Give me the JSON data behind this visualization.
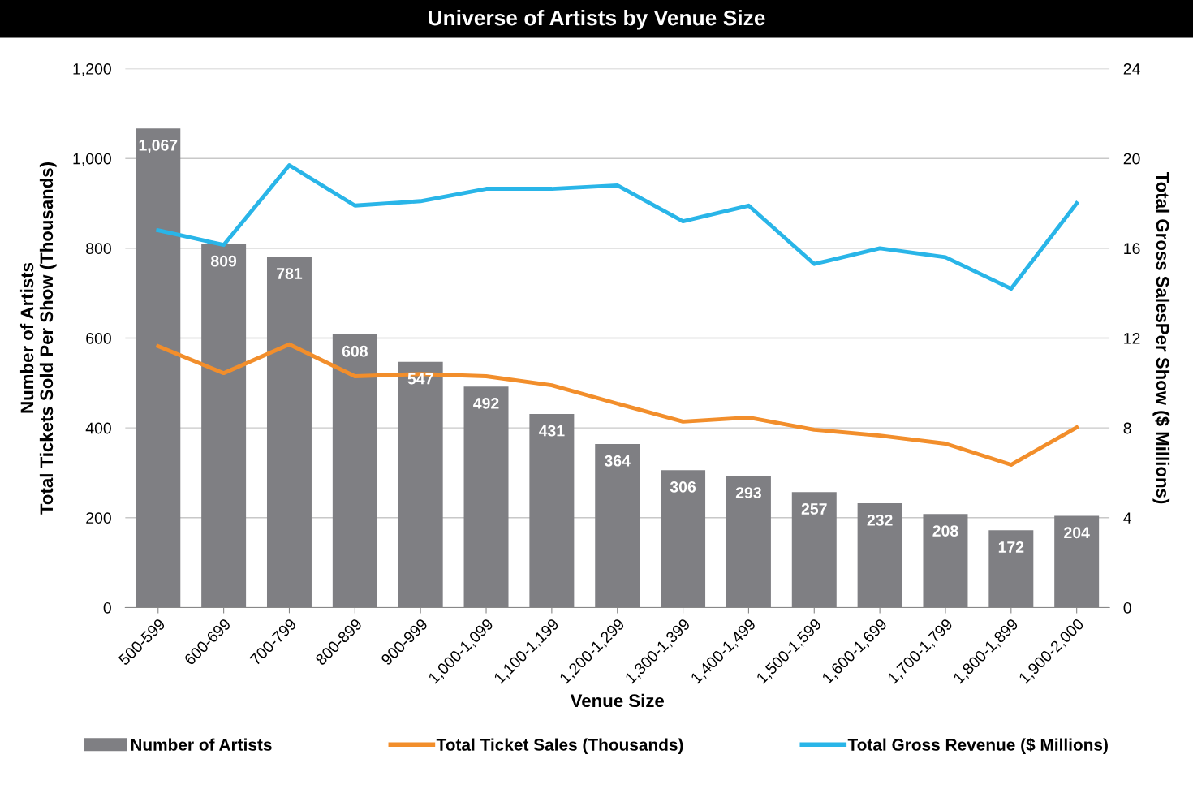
{
  "chart_data": {
    "type": "bar",
    "title": "Universe of Artists by Venue Size",
    "xlabel": "Venue Size",
    "ylabel": "Number of Artists\nTotal Tickets Sold Per Show (Thousands)",
    "y2label": "Total Gross SalesPer Show ($ Millions)",
    "categories": [
      "500-599",
      "600-699",
      "700-799",
      "800-899",
      "900-999",
      "1,000-1,099",
      "1,100-1,199",
      "1,200-1,299",
      "1,300-1,399",
      "1,400-1,499",
      "1,500-1,599",
      "1,600-1,699",
      "1,700-1,799",
      "1,800-1,899",
      "1,900-2,000"
    ],
    "series": [
      {
        "name": "Number of Artists",
        "color": "#7f7f83",
        "values": [
          1067,
          809,
          781,
          608,
          547,
          492,
          431,
          364,
          306,
          293,
          257,
          232,
          208,
          172,
          204
        ],
        "value_labels": [
          "1,067",
          "809",
          "781",
          "608",
          "547",
          "492",
          "431",
          "364",
          "306",
          "293",
          "257",
          "232",
          "208",
          "172",
          "204"
        ]
      },
      {
        "name": "Total Ticket Sales (Thousands)",
        "type": "line",
        "color": "#f28e2b",
        "values": [
          582,
          522,
          586,
          515,
          520,
          515,
          495,
          454,
          414,
          423,
          396,
          383,
          365,
          318,
          401
        ]
      },
      {
        "name": "Total Gross Revenue ($ Millions)",
        "type": "line",
        "axis": "y2",
        "color": "#29b5e8",
        "values": [
          16.8,
          16.15,
          19.7,
          17.9,
          18.1,
          18.65,
          18.65,
          18.8,
          17.2,
          17.9,
          15.3,
          16.0,
          15.6,
          14.2,
          18.0
        ]
      }
    ],
    "ylim": [
      0,
      1200
    ],
    "yticks": [
      0,
      200,
      400,
      600,
      800,
      {
        "value": 1000,
        "label": "1,000"
      },
      {
        "value": 1200,
        "label": "1,200"
      }
    ],
    "y2lim": [
      0,
      24
    ],
    "y2ticks": [
      0,
      4,
      8,
      12,
      16,
      20,
      24
    ],
    "grid": "y",
    "legend": "bottom",
    "marker": "none",
    "line_style": "solid"
  }
}
